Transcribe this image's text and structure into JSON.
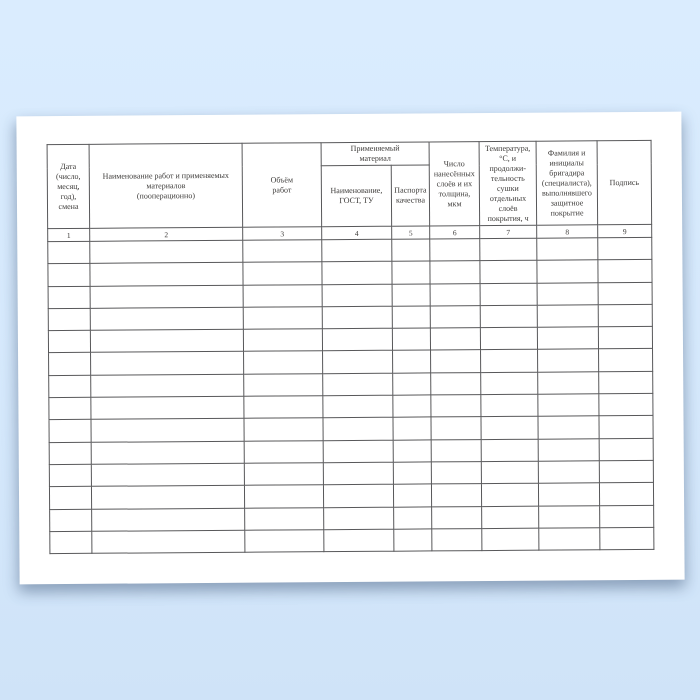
{
  "table": {
    "group_header": "Применяемый\nматериал",
    "columns": [
      {
        "num": "1",
        "label": "Дата\n(число,\nмесяц,\nгод),\nсмена"
      },
      {
        "num": "2",
        "label": "Наименование работ и применяемых\nматериалов\n(пооперационно)"
      },
      {
        "num": "3",
        "label": "Объём\nработ"
      },
      {
        "num": "4",
        "label": "Наименование,\nГОСТ, ТУ"
      },
      {
        "num": "5",
        "label": "Паспорта\nкачества"
      },
      {
        "num": "6",
        "label": "Число\nнанесённых\nслоёв и их\nтолщина,\nмкм"
      },
      {
        "num": "7",
        "label": "Температура,\n°С, и\nпродолжи-\nтельность\nсушки\nотдельных\nслоёв\nпокрытия, ч"
      },
      {
        "num": "8",
        "label": "Фамилия и\nинициалы\nбригадира\n(специалиста),\nвыполнявшего\nзащитное\nпокрытие"
      },
      {
        "num": "9",
        "label": "Подпись"
      }
    ],
    "empty_row_count": 14
  },
  "colors": {
    "background_blue": "#d6e9fc",
    "paper_white": "#ffffff",
    "table_border": "#58585a",
    "header_text": "#3d3b39"
  }
}
